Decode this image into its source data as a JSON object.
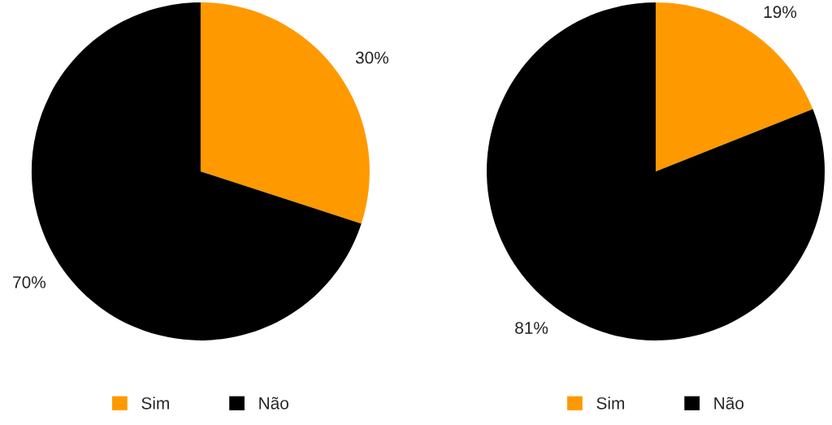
{
  "chart_data": [
    {
      "type": "pie",
      "categories": [
        "Sim",
        "Não"
      ],
      "values": [
        30,
        70
      ],
      "colors": [
        "#ff9900",
        "#000000"
      ],
      "value_labels": [
        "30%",
        "70%"
      ],
      "legend": "bottom"
    },
    {
      "type": "pie",
      "categories": [
        "Sim",
        "Não"
      ],
      "values": [
        19,
        81
      ],
      "colors": [
        "#ff9900",
        "#000000"
      ],
      "value_labels": [
        "19%",
        "81%"
      ],
      "legend": "bottom"
    }
  ]
}
